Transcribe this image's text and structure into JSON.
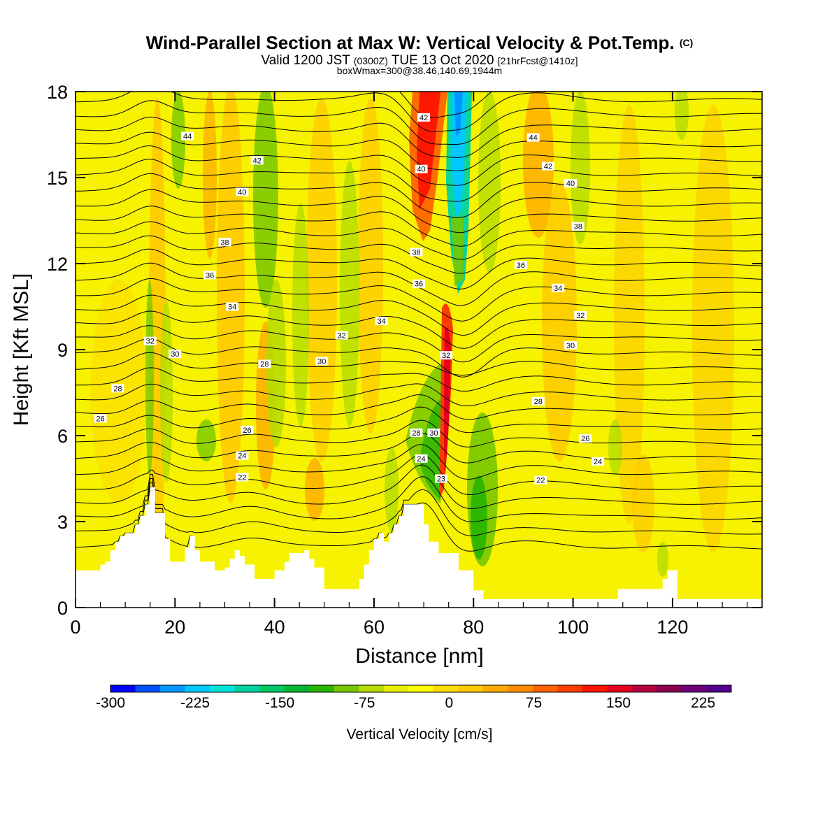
{
  "chart_data": {
    "type": "heatmap",
    "title": "Wind-Parallel Section at Max W: Vertical Velocity & Pot.Temp.",
    "title_mark": "(C)",
    "subtitle_parts": [
      "Valid 1200 JST",
      "(0300Z)",
      "TUE 13 Oct 2020",
      "[21hrFcst@1410z]"
    ],
    "subtitle2": "boxWmax=300@38.46,140.69,1944m",
    "xlabel": "Distance [nm]",
    "ylabel": "Height [Kft MSL]",
    "xlim": [
      0,
      138
    ],
    "ylim": [
      0,
      18
    ],
    "x_ticks": [
      "0",
      "20",
      "40",
      "60",
      "80",
      "100",
      "120"
    ],
    "y_ticks": [
      "0",
      "3",
      "6",
      "9",
      "12",
      "15",
      "18"
    ],
    "colorbar": {
      "label": "Vertical Velocity [cm/s]",
      "range": [
        -300,
        250
      ],
      "tick_labels": [
        "-300",
        "-225",
        "-150",
        "-75",
        "0",
        "75",
        "150",
        "225"
      ],
      "tick_values": [
        -300,
        -225,
        -150,
        -75,
        0,
        75,
        150,
        225
      ],
      "colors": [
        "#0000ff",
        "#0050ff",
        "#0096ff",
        "#00c8ff",
        "#00e6dc",
        "#00d2a0",
        "#00c864",
        "#00b432",
        "#28b400",
        "#78c800",
        "#b4dc00",
        "#e6f000",
        "#ffff00",
        "#ffdc00",
        "#ffc800",
        "#ffaa00",
        "#ff8c00",
        "#ff6400",
        "#ff3c00",
        "#ff1400",
        "#e6001e",
        "#b4003c",
        "#8c0050",
        "#6e0078",
        "#50008c"
      ]
    },
    "terrain": [
      {
        "x": 0,
        "h": 1.3
      },
      {
        "x": 4,
        "h": 1.3
      },
      {
        "x": 5,
        "h": 1.5
      },
      {
        "x": 6,
        "h": 1.6
      },
      {
        "x": 7,
        "h": 2.0
      },
      {
        "x": 8,
        "h": 2.3
      },
      {
        "x": 9,
        "h": 2.5
      },
      {
        "x": 10,
        "h": 2.6
      },
      {
        "x": 12,
        "h": 2.9
      },
      {
        "x": 13,
        "h": 3.2
      },
      {
        "x": 14,
        "h": 3.6
      },
      {
        "x": 15,
        "h": 4.2
      },
      {
        "x": 16,
        "h": 3.3
      },
      {
        "x": 18,
        "h": 2.4
      },
      {
        "x": 19,
        "h": 1.6
      },
      {
        "x": 22,
        "h": 2.1
      },
      {
        "x": 23,
        "h": 2.5
      },
      {
        "x": 24,
        "h": 2.0
      },
      {
        "x": 25,
        "h": 1.6
      },
      {
        "x": 28,
        "h": 1.3
      },
      {
        "x": 30,
        "h": 1.4
      },
      {
        "x": 31,
        "h": 1.7
      },
      {
        "x": 32,
        "h": 2.0
      },
      {
        "x": 33,
        "h": 1.8
      },
      {
        "x": 34,
        "h": 1.5
      },
      {
        "x": 36,
        "h": 1.0
      },
      {
        "x": 39,
        "h": 1.0
      },
      {
        "x": 40,
        "h": 1.3
      },
      {
        "x": 42,
        "h": 1.6
      },
      {
        "x": 43,
        "h": 1.9
      },
      {
        "x": 46,
        "h": 2.0
      },
      {
        "x": 47,
        "h": 1.7
      },
      {
        "x": 48,
        "h": 1.4
      },
      {
        "x": 50,
        "h": 0.65
      },
      {
        "x": 56,
        "h": 0.65
      },
      {
        "x": 57,
        "h": 1.0
      },
      {
        "x": 58,
        "h": 1.5
      },
      {
        "x": 59,
        "h": 2.0
      },
      {
        "x": 60,
        "h": 2.4
      },
      {
        "x": 61,
        "h": 2.6
      },
      {
        "x": 62,
        "h": 2.3
      },
      {
        "x": 63,
        "h": 2.6
      },
      {
        "x": 64,
        "h": 2.9
      },
      {
        "x": 65,
        "h": 3.2
      },
      {
        "x": 66,
        "h": 3.6
      },
      {
        "x": 69,
        "h": 3.6
      },
      {
        "x": 70,
        "h": 2.9
      },
      {
        "x": 71,
        "h": 2.3
      },
      {
        "x": 73,
        "h": 1.9
      },
      {
        "x": 76,
        "h": 1.9
      },
      {
        "x": 77,
        "h": 1.3
      },
      {
        "x": 80,
        "h": 0.6
      },
      {
        "x": 82,
        "h": 0.3
      },
      {
        "x": 108,
        "h": 0.3
      },
      {
        "x": 109,
        "h": 0.65
      },
      {
        "x": 117,
        "h": 0.65
      },
      {
        "x": 118,
        "h": 1.0
      },
      {
        "x": 119,
        "h": 1.3
      },
      {
        "x": 120,
        "h": 1.3
      },
      {
        "x": 121,
        "h": 0.3
      },
      {
        "x": 138,
        "h": 0.3
      }
    ],
    "theta_contour_labels": [
      {
        "label": "44",
        "x": 22.5,
        "y": 16.45
      },
      {
        "label": "42",
        "x": 36.5,
        "y": 15.6
      },
      {
        "label": "40",
        "x": 33.5,
        "y": 14.5
      },
      {
        "label": "38",
        "x": 30.0,
        "y": 12.75
      },
      {
        "label": "36",
        "x": 27.0,
        "y": 11.6
      },
      {
        "label": "34",
        "x": 31.5,
        "y": 10.5
      },
      {
        "label": "32",
        "x": 15.0,
        "y": 9.3
      },
      {
        "label": "30",
        "x": 20.0,
        "y": 8.85
      },
      {
        "label": "28",
        "x": 8.5,
        "y": 7.65
      },
      {
        "label": "26",
        "x": 5.0,
        "y": 6.6
      },
      {
        "label": "28",
        "x": 38.0,
        "y": 8.5
      },
      {
        "label": "26",
        "x": 34.5,
        "y": 6.2
      },
      {
        "label": "24",
        "x": 33.5,
        "y": 5.3
      },
      {
        "label": "22",
        "x": 33.5,
        "y": 4.55
      },
      {
        "label": "30",
        "x": 49.5,
        "y": 8.6
      },
      {
        "label": "32",
        "x": 53.5,
        "y": 9.5
      },
      {
        "label": "34",
        "x": 61.5,
        "y": 10.0
      },
      {
        "label": "36",
        "x": 69.0,
        "y": 11.3
      },
      {
        "label": "38",
        "x": 68.5,
        "y": 12.4
      },
      {
        "label": "40",
        "x": 69.5,
        "y": 15.3
      },
      {
        "label": "42",
        "x": 70.0,
        "y": 17.1
      },
      {
        "label": "32",
        "x": 74.5,
        "y": 8.8
      },
      {
        "label": "30",
        "x": 72.0,
        "y": 6.1
      },
      {
        "label": "28",
        "x": 68.5,
        "y": 6.1
      },
      {
        "label": "24",
        "x": 69.5,
        "y": 5.2
      },
      {
        "label": "23",
        "x": 73.5,
        "y": 4.5
      },
      {
        "label": "44",
        "x": 92.0,
        "y": 16.4
      },
      {
        "label": "42",
        "x": 95.0,
        "y": 15.4
      },
      {
        "label": "40",
        "x": 99.5,
        "y": 14.8
      },
      {
        "label": "38",
        "x": 101.0,
        "y": 13.3
      },
      {
        "label": "36",
        "x": 89.5,
        "y": 11.95
      },
      {
        "label": "34",
        "x": 97.0,
        "y": 11.15
      },
      {
        "label": "32",
        "x": 101.5,
        "y": 10.2
      },
      {
        "label": "30",
        "x": 99.5,
        "y": 9.15
      },
      {
        "label": "28",
        "x": 93.0,
        "y": 7.2
      },
      {
        "label": "26",
        "x": 102.5,
        "y": 5.9
      },
      {
        "label": "24",
        "x": 105.0,
        "y": 5.1
      },
      {
        "label": "22",
        "x": 93.5,
        "y": 4.45
      }
    ]
  }
}
